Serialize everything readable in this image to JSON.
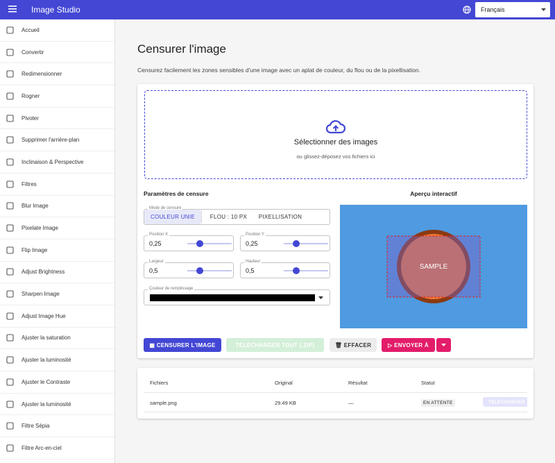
{
  "appbar": {
    "title": "Image Studio",
    "language": "Français"
  },
  "sidebar": {
    "items": [
      "Accueil",
      "Convertir",
      "Redimensionner",
      "Rogner",
      "Pivoter",
      "Supprimer l'arrière-plan",
      "Inclinaison & Perspective",
      "Filtres",
      "Blur Image",
      "Pixelate Image",
      "Flip Image",
      "Adjust Brightness",
      "Sharpen Image",
      "Adjust Image Hue",
      "Ajuster la saturation",
      "Ajuster la luminosité",
      "Ajuster le Contraste",
      "Ajuster la luminosité",
      "Filtre Sépia",
      "Filtre Arc-en-ciel"
    ]
  },
  "page": {
    "title": "Censurer l'image",
    "description": "Censurez facilement les zones sensibles d'une image avec un aplat de couleur, du flou ou de la pixellisation."
  },
  "dropzone": {
    "title": "Sélectionner des images",
    "hint": "ou glissez-déposez vos fichiers ici"
  },
  "settings": {
    "title": "Paramètres de censure",
    "mode": {
      "legend": "Mode de censure",
      "options": [
        "COULEUR UNIE",
        "FLOU : 10 PX",
        "PIXELLISATION"
      ]
    },
    "fields": [
      {
        "label": "Position X",
        "value": "0,25"
      },
      {
        "label": "Position Y",
        "value": "0,25"
      },
      {
        "label": "Largeur",
        "value": "0,5"
      },
      {
        "label": "Hauteur",
        "value": "0,5"
      }
    ],
    "color_label": "Couleur de remplissage"
  },
  "preview": {
    "title": "Aperçu interactif",
    "sample": "SAMPLE"
  },
  "buttons": {
    "censor": "CENSURER L'IMAGE",
    "download_all": "TÉLÉCHARGER TOUT (.ZIP)",
    "clear": "EFFACER",
    "send": "ENVOYER À"
  },
  "table": {
    "headers": [
      "Fichiers",
      "Original",
      "Résultat",
      "Statut"
    ],
    "rows": [
      [
        "sample.png",
        "29.49 KB",
        "—",
        "EN ATTENTE"
      ]
    ],
    "row_action": "TÉLÉCHARGER"
  }
}
